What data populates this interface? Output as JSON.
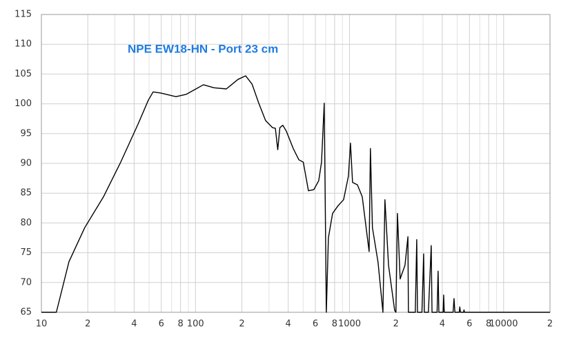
{
  "chart_data": {
    "type": "line",
    "title": "NPE EW18-HN - Port 23 cm",
    "title_color": "#1e7be0",
    "x": [
      10,
      12.5,
      15.1,
      19.1,
      25.3,
      32.7,
      42.4,
      49.4,
      53.1,
      59.8,
      74.7,
      87.2,
      112.6,
      131.8,
      158.6,
      188.8,
      211.6,
      233,
      257.6,
      285,
      316,
      330,
      342,
      353,
      369,
      389,
      431,
      469,
      501,
      541,
      587,
      631,
      658,
      685,
      707,
      729,
      776,
      843,
      915,
      984,
      1014,
      1046,
      1125,
      1209,
      1340,
      1366,
      1408,
      1531,
      1647,
      1697,
      1791,
      1963,
      2000,
      2046,
      2130,
      2290,
      2393,
      2410,
      2672,
      2730,
      2760,
      2950,
      3027,
      3060,
      3250,
      3390,
      3430,
      3700,
      3757,
      3800,
      4050,
      4083,
      4120,
      4700,
      4766,
      4830,
      5150,
      5195,
      5250,
      5500,
      5531,
      5580,
      20000
    ],
    "series": [
      {
        "color": "#000000",
        "values": [
          65,
          65,
          73.5,
          79.2,
          84.4,
          90.2,
          96.6,
          100.6,
          102.0,
          101.8,
          101.2,
          101.6,
          103.2,
          102.7,
          102.5,
          104.1,
          104.7,
          103.3,
          100.1,
          97.2,
          96.0,
          95.9,
          92.3,
          96.0,
          96.4,
          95.4,
          92.5,
          90.6,
          90.2,
          85.4,
          85.6,
          87.1,
          90.2,
          100.1,
          65,
          77.5,
          81.6,
          82.9,
          83.9,
          87.9,
          93.4,
          86.8,
          86.4,
          84.4,
          75.2,
          92.5,
          79.2,
          73.4,
          65,
          83.9,
          72.9,
          65.3,
          65,
          81.6,
          70.6,
          72.9,
          77.7,
          65,
          65,
          77.2,
          65,
          65,
          74.8,
          65,
          65,
          76.2,
          65,
          65,
          71.9,
          65,
          65,
          67.9,
          65,
          65,
          67.3,
          65,
          65,
          65.9,
          65,
          65,
          65.4,
          65,
          65
        ]
      }
    ],
    "xlim": [
      10,
      20000
    ],
    "x_log": true,
    "xticks": [
      10,
      {
        "value": 20,
        "label": "2"
      },
      {
        "value": 40,
        "label": "4"
      },
      {
        "value": 60,
        "label": "6"
      },
      {
        "value": 80,
        "label": "8"
      },
      100,
      {
        "value": 200,
        "label": "2"
      },
      {
        "value": 400,
        "label": "4"
      },
      {
        "value": 600,
        "label": "6"
      },
      {
        "value": 800,
        "label": "8"
      },
      1000,
      {
        "value": 2000,
        "label": "2"
      },
      {
        "value": 4000,
        "label": "4"
      },
      {
        "value": 6000,
        "label": "6"
      },
      {
        "value": 8000,
        "label": "8"
      },
      10000,
      {
        "value": 20000,
        "label": "2"
      }
    ],
    "ylim": [
      65,
      115
    ],
    "yticks": [
      65,
      70,
      75,
      80,
      85,
      90,
      95,
      100,
      105,
      110,
      115
    ],
    "grid": true
  }
}
